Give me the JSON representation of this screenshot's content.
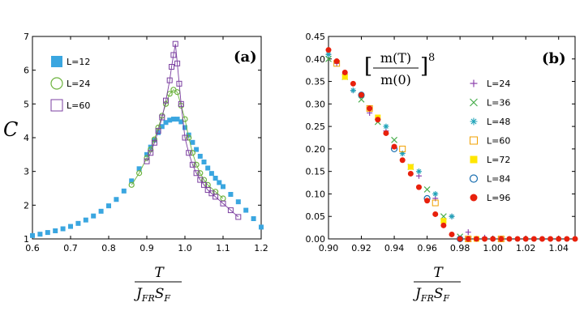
{
  "chart_data": [
    {
      "panel": "(a)",
      "type": "scatter",
      "ylabel": "C",
      "xlabel": "T / J_FR S_F",
      "xlabel_num": "T",
      "xlabel_den": "J",
      "xlabel_den_sub": "FR",
      "xlabel_den_mid": "S",
      "xlabel_den_sub2": "F",
      "xlim": [
        0.6,
        1.2
      ],
      "ylim": [
        1,
        7
      ],
      "xticks": [
        "0.6",
        "0.7",
        "0.8",
        "0.9",
        "1.0",
        "1.1",
        "1.2"
      ],
      "yticks": [
        "1",
        "2",
        "3",
        "4",
        "5",
        "6",
        "7"
      ],
      "legend": [
        "L=12",
        "L=24",
        "L=60"
      ],
      "series": [
        {
          "name": "L=12",
          "marker": "filled-square",
          "color": "#3aa6e0",
          "x": [
            0.6,
            0.62,
            0.64,
            0.66,
            0.68,
            0.7,
            0.72,
            0.74,
            0.76,
            0.78,
            0.8,
            0.82,
            0.84,
            0.86,
            0.88,
            0.9,
            0.91,
            0.92,
            0.93,
            0.94,
            0.95,
            0.96,
            0.97,
            0.98,
            0.99,
            1.0,
            1.01,
            1.02,
            1.03,
            1.04,
            1.05,
            1.06,
            1.07,
            1.08,
            1.09,
            1.1,
            1.12,
            1.14,
            1.16,
            1.18,
            1.2
          ],
          "y": [
            1.1,
            1.14,
            1.19,
            1.24,
            1.3,
            1.37,
            1.46,
            1.56,
            1.68,
            1.82,
            1.98,
            2.17,
            2.42,
            2.72,
            3.08,
            3.5,
            3.72,
            3.93,
            4.15,
            4.33,
            4.45,
            4.52,
            4.55,
            4.55,
            4.47,
            4.3,
            4.08,
            3.86,
            3.65,
            3.45,
            3.28,
            3.1,
            2.94,
            2.8,
            2.67,
            2.55,
            2.32,
            2.1,
            1.85,
            1.6,
            1.35
          ]
        },
        {
          "name": "L=24",
          "marker": "open-circle",
          "color": "#6db33f",
          "x": [
            0.86,
            0.88,
            0.9,
            0.91,
            0.92,
            0.93,
            0.94,
            0.95,
            0.96,
            0.97,
            0.98,
            0.99,
            1.0,
            1.01,
            1.02,
            1.03,
            1.04,
            1.05,
            1.06,
            1.08,
            1.1
          ],
          "y": [
            2.6,
            2.95,
            3.4,
            3.65,
            3.95,
            4.3,
            4.65,
            5.0,
            5.3,
            5.42,
            5.35,
            4.95,
            4.55,
            4.0,
            3.55,
            3.2,
            2.95,
            2.75,
            2.6,
            2.4,
            2.2
          ]
        },
        {
          "name": "L=60",
          "marker": "open-square",
          "color": "#7b3fa0",
          "x": [
            0.9,
            0.91,
            0.92,
            0.93,
            0.94,
            0.95,
            0.96,
            0.965,
            0.97,
            0.975,
            0.98,
            0.985,
            0.99,
            1.0,
            1.01,
            1.02,
            1.03,
            1.04,
            1.05,
            1.06,
            1.07,
            1.08,
            1.1,
            1.12,
            1.14
          ],
          "y": [
            3.3,
            3.55,
            3.85,
            4.2,
            4.6,
            5.1,
            5.7,
            6.1,
            6.45,
            6.78,
            6.2,
            5.6,
            5.0,
            4.0,
            3.55,
            3.2,
            2.95,
            2.75,
            2.6,
            2.45,
            2.35,
            2.25,
            2.05,
            1.85,
            1.65
          ]
        }
      ]
    },
    {
      "panel": "(b)",
      "type": "scatter",
      "title_formula": "[m(T)/m(0)]^8",
      "formula_open": "[",
      "formula_close": "]",
      "formula_num": "m(T)",
      "formula_den": "m(0)",
      "formula_exp": "8",
      "xlabel": "T / J_FR S_F",
      "xlabel_num": "T",
      "xlabel_den": "J",
      "xlabel_den_sub": "FR",
      "xlabel_den_mid": "S",
      "xlabel_den_sub2": "F",
      "xlim": [
        0.9,
        1.05
      ],
      "ylim": [
        0,
        0.45
      ],
      "xticks": [
        "0.90",
        "0.92",
        "0.94",
        "0.96",
        "0.98",
        "1.00",
        "1.02",
        "1.04"
      ],
      "yticks": [
        "0.00",
        "0.05",
        "0.10",
        "0.15",
        "0.20",
        "0.25",
        "0.30",
        "0.35",
        "0.40",
        "0.45"
      ],
      "legend": [
        "L=24",
        "L=36",
        "L=48",
        "L=60",
        "L=72",
        "L=84",
        "L=96"
      ],
      "series": [
        {
          "name": "L=24",
          "marker": "plus",
          "color": "#8e44ad",
          "x": [
            0.9,
            0.905,
            0.915,
            0.925,
            0.935,
            0.945,
            0.955,
            0.965,
            0.975,
            0.985,
            0.995,
            1.01,
            1.03
          ],
          "y": [
            0.41,
            0.39,
            0.33,
            0.28,
            0.24,
            0.19,
            0.14,
            0.09,
            0.05,
            0.015,
            0.003,
            0.0,
            0.0
          ]
        },
        {
          "name": "L=36",
          "marker": "cross",
          "color": "#4caf50",
          "x": [
            0.9,
            0.91,
            0.92,
            0.93,
            0.94,
            0.95,
            0.96,
            0.97,
            0.98
          ],
          "y": [
            0.4,
            0.36,
            0.31,
            0.26,
            0.22,
            0.16,
            0.11,
            0.05,
            0.005
          ]
        },
        {
          "name": "L=48",
          "marker": "star",
          "color": "#1fa3b8",
          "x": [
            0.9,
            0.915,
            0.935,
            0.945,
            0.955,
            0.965,
            0.975,
            0.99,
            1.0
          ],
          "y": [
            0.41,
            0.33,
            0.25,
            0.19,
            0.15,
            0.1,
            0.05,
            0.0,
            0.0
          ]
        },
        {
          "name": "L=60",
          "marker": "open-square",
          "color": "#f0a000",
          "x": [
            0.905,
            0.925,
            0.945,
            0.965,
            0.985,
            1.005
          ],
          "y": [
            0.39,
            0.29,
            0.2,
            0.08,
            0.0,
            0.0
          ]
        },
        {
          "name": "L=72",
          "marker": "filled-square",
          "color": "#ffe600",
          "x": [
            0.91,
            0.93,
            0.95,
            0.97,
            0.99
          ],
          "y": [
            0.36,
            0.27,
            0.16,
            0.04,
            0.0
          ]
        },
        {
          "name": "L=84",
          "marker": "open-circle",
          "color": "#1a6fb0",
          "x": [
            0.92,
            0.94,
            0.96,
            0.98
          ],
          "y": [
            0.32,
            0.2,
            0.09,
            0.0
          ]
        },
        {
          "name": "L=96",
          "marker": "filled-circle",
          "color": "#e8200c",
          "x": [
            0.9,
            0.905,
            0.91,
            0.915,
            0.92,
            0.925,
            0.93,
            0.935,
            0.94,
            0.945,
            0.95,
            0.955,
            0.96,
            0.965,
            0.97,
            0.975,
            0.98,
            0.985,
            0.99,
            0.995,
            1.0,
            1.005,
            1.01,
            1.015,
            1.02,
            1.025,
            1.03,
            1.035,
            1.04,
            1.045,
            1.05
          ],
          "y": [
            0.42,
            0.395,
            0.37,
            0.345,
            0.32,
            0.29,
            0.265,
            0.235,
            0.205,
            0.175,
            0.145,
            0.115,
            0.085,
            0.055,
            0.03,
            0.01,
            0.0,
            0.0,
            0.0,
            0.0,
            0.0,
            0.0,
            0.0,
            0.0,
            0.0,
            0.0,
            0.0,
            0.0,
            0.0,
            0.0,
            0.0
          ]
        }
      ]
    }
  ]
}
